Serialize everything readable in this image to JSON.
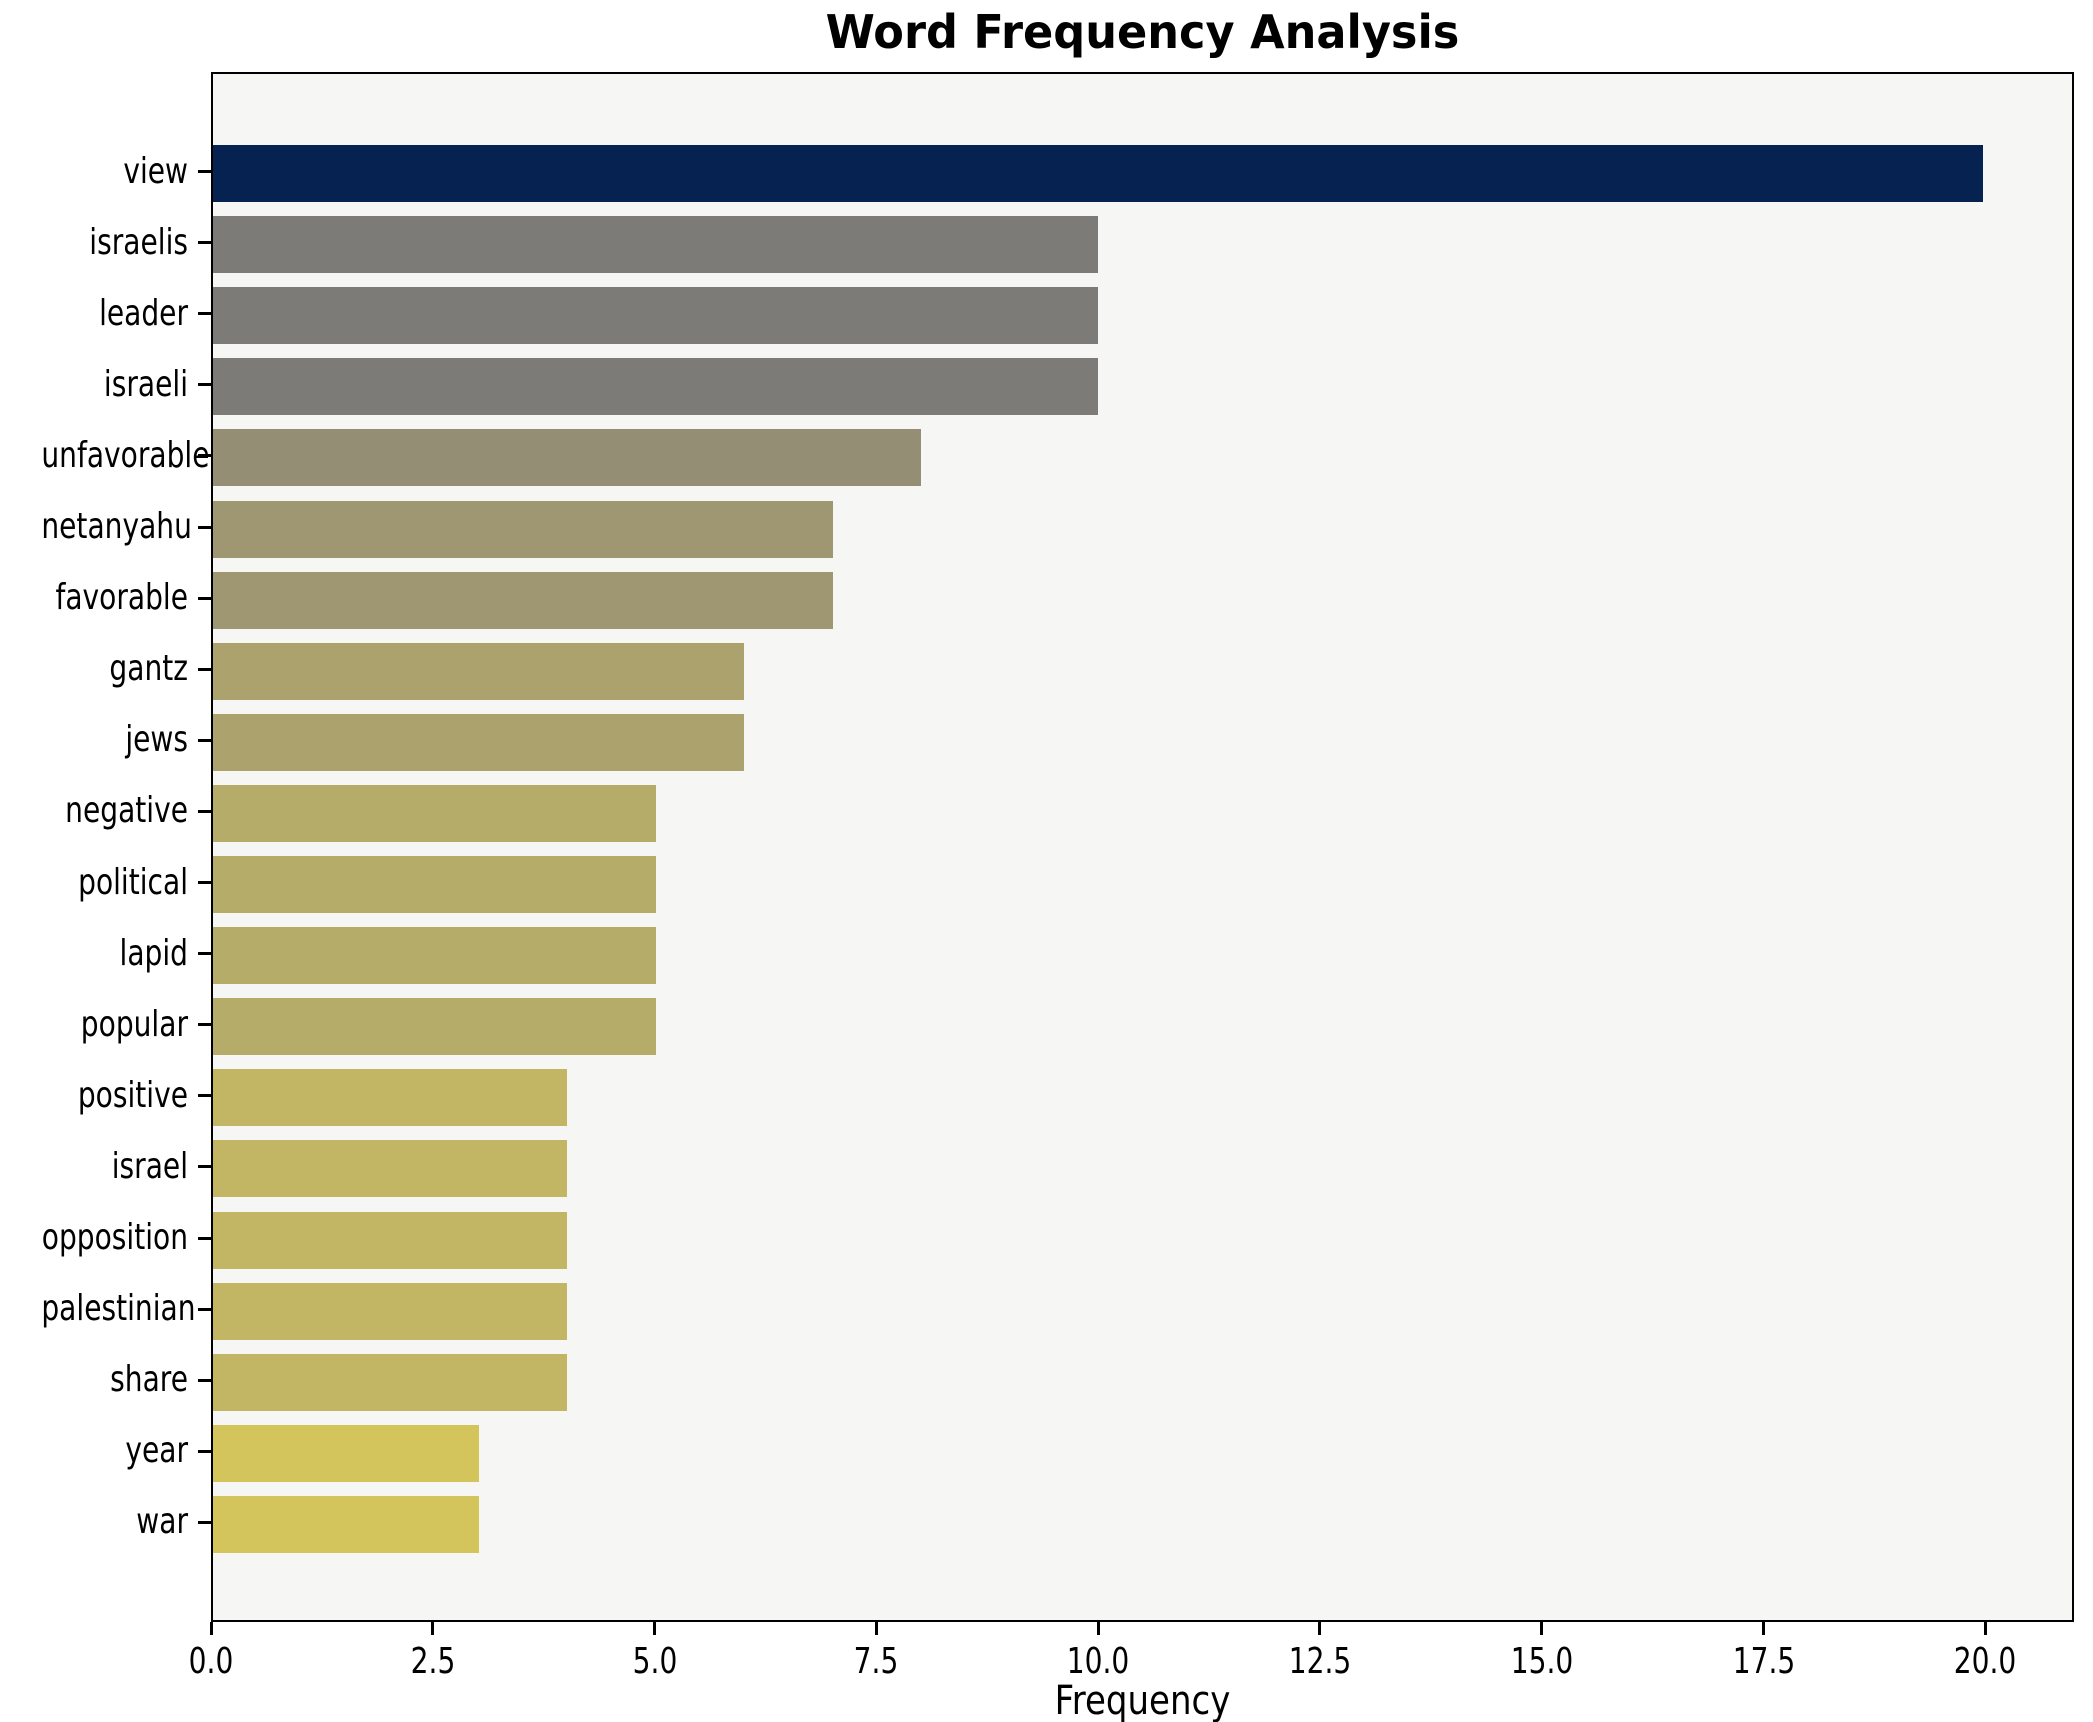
{
  "chart_data": {
    "type": "bar",
    "orientation": "horizontal",
    "title": "Word Frequency Analysis",
    "xlabel": "Frequency",
    "ylabel": "",
    "categories": [
      "view",
      "israelis",
      "leader",
      "israeli",
      "unfavorable",
      "netanyahu",
      "favorable",
      "gantz",
      "jews",
      "negative",
      "political",
      "lapid",
      "popular",
      "positive",
      "israel",
      "opposition",
      "palestinian",
      "share",
      "year",
      "war"
    ],
    "values": [
      20,
      10,
      10,
      10,
      8,
      7,
      7,
      6,
      6,
      5,
      5,
      5,
      5,
      4,
      4,
      4,
      4,
      4,
      3,
      3
    ],
    "bar_colors": [
      "#052250",
      "#7c7b77",
      "#7c7b77",
      "#7c7b77",
      "#948e75",
      "#9f9771",
      "#9f9771",
      "#aba26d",
      "#aba26d",
      "#b6ac6a",
      "#b6ac6a",
      "#b6ac6a",
      "#b6ac6a",
      "#c2b563",
      "#c2b563",
      "#c2b563",
      "#c2b563",
      "#c2b563",
      "#d4c45c",
      "#d4c45c"
    ],
    "xlim": [
      0,
      21
    ],
    "xticks": [
      {
        "value": 0,
        "label": "0.0"
      },
      {
        "value": 2.5,
        "label": "2.5"
      },
      {
        "value": 5,
        "label": "5.0"
      },
      {
        "value": 7.5,
        "label": "7.5"
      },
      {
        "value": 10,
        "label": "10.0"
      },
      {
        "value": 12.5,
        "label": "12.5"
      },
      {
        "value": 15,
        "label": "15.0"
      },
      {
        "value": 17.5,
        "label": "17.5"
      },
      {
        "value": 20,
        "label": "20.0"
      }
    ],
    "grid": false,
    "legend": null,
    "plot_background": "#f6f6f5",
    "figure_background": "#ffffff",
    "spine_color": "#000000",
    "max_bar_color": "#052250",
    "min_bar_color": "#d4c45c"
  }
}
